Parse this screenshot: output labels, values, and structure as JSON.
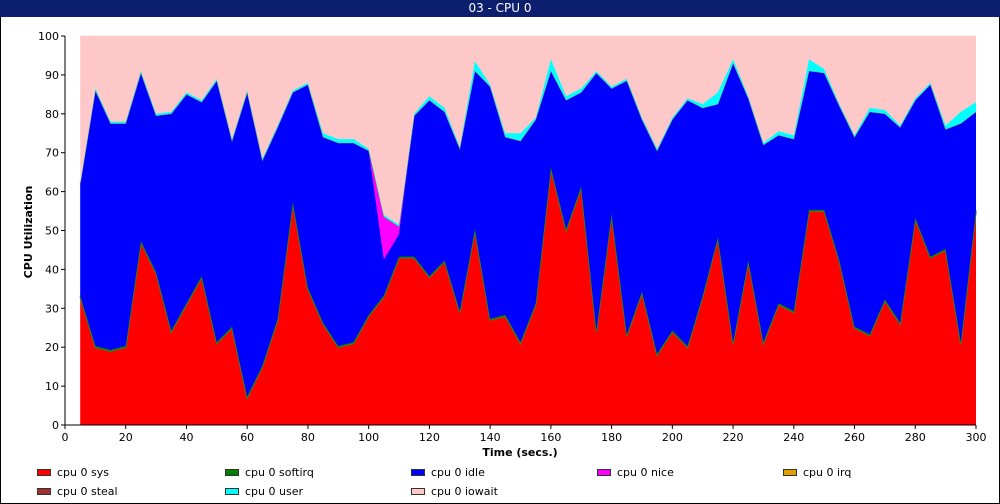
{
  "window": {
    "title": "03 - CPU 0"
  },
  "chart_data": {
    "type": "area",
    "stacked": true,
    "xlabel": "Time (secs.)",
    "ylabel": "CPU Utilization",
    "xlim": [
      0,
      300
    ],
    "ylim": [
      0,
      100
    ],
    "x_ticks": [
      0,
      20,
      40,
      60,
      80,
      100,
      120,
      140,
      160,
      180,
      200,
      220,
      240,
      260,
      280,
      300
    ],
    "y_ticks": [
      0,
      10,
      20,
      30,
      40,
      50,
      60,
      70,
      80,
      90,
      100
    ],
    "grid": false,
    "legend_position": "bottom",
    "x": [
      5,
      10,
      15,
      20,
      25,
      30,
      35,
      40,
      45,
      50,
      55,
      60,
      65,
      70,
      75,
      80,
      85,
      90,
      95,
      100,
      105,
      110,
      115,
      120,
      125,
      130,
      135,
      140,
      145,
      150,
      155,
      160,
      165,
      170,
      175,
      180,
      185,
      190,
      195,
      200,
      205,
      210,
      215,
      220,
      225,
      230,
      235,
      240,
      245,
      250,
      255,
      260,
      265,
      270,
      275,
      280,
      285,
      290,
      295,
      300
    ],
    "series": [
      {
        "name": "cpu 0 sys",
        "color": "#ff0000",
        "values": [
          33,
          20,
          19,
          20,
          47,
          39,
          24,
          31,
          38,
          21,
          25,
          7,
          15,
          27,
          57,
          35,
          26,
          20,
          21,
          28,
          33,
          43,
          43,
          38,
          42,
          29,
          50,
          27,
          28,
          21,
          31,
          66,
          50,
          61,
          24,
          54,
          23,
          34,
          18,
          24,
          20,
          33,
          48,
          21,
          42,
          21,
          31,
          29,
          55,
          55,
          42,
          25,
          23,
          32,
          26,
          53,
          43,
          45,
          21,
          55
        ]
      },
      {
        "name": "cpu 0 softirq",
        "color": "#008000",
        "values": [
          0.3,
          0.3,
          0.3,
          0.3,
          0.3,
          0.3,
          0.3,
          0.3,
          0.3,
          0.3,
          0.3,
          0.3,
          0.3,
          0.3,
          0.3,
          0.3,
          0.3,
          0.3,
          0.3,
          0.3,
          0.3,
          0.3,
          0.3,
          0.3,
          0.3,
          0.3,
          0.3,
          0.3,
          0.3,
          0.3,
          0.3,
          0.3,
          0.3,
          0.3,
          0.3,
          0.3,
          0.3,
          0.3,
          0.3,
          0.3,
          0.3,
          0.3,
          0.3,
          0.3,
          0.3,
          0.3,
          0.3,
          0.3,
          0.3,
          0.3,
          0.3,
          0.3,
          0.3,
          0.3,
          0.3,
          0.3,
          0.3,
          0.3,
          0.3,
          0.3
        ]
      },
      {
        "name": "cpu 0 idle",
        "color": "#0000ff",
        "values": [
          28.7,
          65.7,
          58.2,
          57.2,
          43.2,
          40.2,
          55.7,
          53.7,
          44.7,
          67.2,
          47.7,
          78.2,
          52.7,
          49.2,
          28.2,
          52.2,
          47.7,
          52.2,
          51.2,
          42.2,
          9.2,
          5.7,
          36.2,
          45.2,
          38.2,
          41.7,
          40.7,
          59.7,
          45.7,
          51.7,
          47.2,
          24.7,
          33.2,
          24.2,
          66.2,
          32.2,
          65.2,
          44.2,
          52.2,
          54.2,
          63.2,
          48.2,
          34.2,
          71.7,
          41.7,
          50.7,
          43.2,
          44.2,
          35.7,
          35.2,
          39.7,
          48.7,
          57.2,
          47.7,
          50.2,
          30.2,
          44.2,
          30.7,
          56.2,
          25.2
        ]
      },
      {
        "name": "cpu 0 nice",
        "color": "#ff00ff",
        "values": [
          0,
          0,
          0,
          0,
          0,
          0,
          0,
          0,
          0,
          0,
          0,
          0,
          0,
          0,
          0,
          0,
          0,
          0,
          0,
          0,
          11,
          2,
          0,
          0,
          0,
          0,
          0,
          0,
          0,
          0,
          0,
          0,
          0,
          0,
          0,
          0,
          0,
          0,
          0,
          0,
          0,
          0,
          0,
          0,
          0,
          0,
          0,
          0,
          0,
          0,
          0,
          0,
          0,
          0,
          0,
          0,
          0,
          0,
          0,
          0
        ]
      },
      {
        "name": "cpu 0 irq",
        "color": "#e0a000",
        "values": [
          0,
          0,
          0,
          0,
          0,
          0,
          0,
          0,
          0,
          0,
          0,
          0,
          0,
          0,
          0,
          0,
          0,
          0,
          0,
          0,
          0,
          0,
          0,
          0,
          0,
          0,
          0,
          0,
          0,
          0,
          0,
          0,
          0,
          0,
          0,
          0,
          0,
          0,
          0,
          0,
          0,
          0,
          0,
          0,
          0,
          0,
          0,
          0,
          0,
          0,
          0,
          0,
          0,
          0,
          0,
          0,
          0,
          0,
          0,
          0
        ]
      },
      {
        "name": "cpu 0 steal",
        "color": "#a03030",
        "values": [
          0,
          0,
          0,
          0,
          0,
          0,
          0,
          0,
          0,
          0,
          0,
          0,
          0,
          0,
          0,
          0,
          0,
          0,
          0,
          0,
          0,
          0,
          0,
          0,
          0,
          0,
          0,
          0,
          0,
          0,
          0,
          0,
          0,
          0,
          0,
          0,
          0,
          0,
          0,
          0,
          0,
          0,
          0,
          0,
          0,
          0,
          0,
          0,
          0,
          0,
          0,
          0,
          0,
          0,
          0,
          0,
          0,
          0,
          0,
          0
        ]
      },
      {
        "name": "cpu 0 user",
        "color": "#00ffff",
        "values": [
          0.3,
          0.5,
          0.5,
          0.5,
          0.5,
          0.5,
          0.5,
          0.5,
          0.5,
          0.5,
          0.5,
          0.5,
          0.5,
          0.5,
          0.5,
          0.5,
          1,
          1,
          1,
          0.5,
          0.5,
          0.5,
          0.5,
          1,
          1,
          0.5,
          2.5,
          0.5,
          1,
          2,
          0.5,
          3,
          1,
          1,
          0.5,
          0.5,
          0.5,
          0.5,
          0.5,
          0.5,
          0.5,
          1,
          3,
          1,
          0.5,
          0.5,
          1,
          1,
          3,
          1,
          0.5,
          0.5,
          1,
          1,
          0.5,
          0.5,
          0.5,
          1,
          3,
          2.5
        ]
      },
      {
        "name": "cpu 0 iowait",
        "color": "#ffc8c8",
        "values": [
          37.7,
          13.5,
          22,
          22,
          9,
          20,
          19.5,
          14.5,
          16.5,
          11,
          26.5,
          14,
          31.5,
          23,
          14,
          12,
          25,
          26.5,
          26.5,
          29,
          46,
          48.5,
          20,
          15.5,
          18.5,
          28.5,
          6.5,
          12.5,
          25,
          25,
          21,
          6,
          15.5,
          13.5,
          9,
          13,
          11,
          21,
          29,
          21,
          16,
          17.5,
          14.5,
          6,
          15.5,
          27.5,
          24.5,
          25.5,
          6,
          8.5,
          17.5,
          25.5,
          18.5,
          19,
          23,
          16,
          12,
          23,
          19.5,
          17
        ]
      }
    ]
  }
}
